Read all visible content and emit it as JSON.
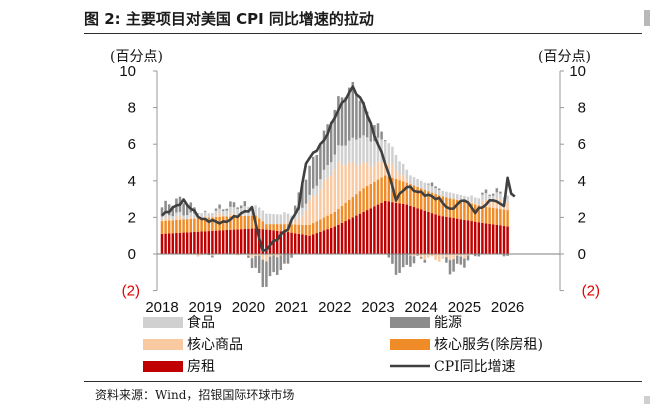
{
  "title": "图 2: 主要项目对美国 CPI 同比增速的拉动",
  "source": "资料来源：Wind，招银国际环球市场",
  "chart_data": {
    "type": "bar",
    "title": "图 2: 主要项目对美国 CPI 同比增速的拉动",
    "left_unit": "(百分点)",
    "right_unit": "(百分点)",
    "ylim": [
      -2,
      10
    ],
    "y_ticks": [
      10,
      8,
      6,
      4,
      2,
      0,
      -2
    ],
    "y_tick_labels": [
      "10",
      "8",
      "6",
      "4",
      "2",
      "0",
      "(2)"
    ],
    "x_tick_labels": [
      "2018",
      "2019",
      "2020",
      "2021",
      "2022",
      "2023",
      "2024",
      "2025",
      "2026"
    ],
    "stacked": true,
    "frequency": "monthly",
    "x_start": "2018-01",
    "x_end": "2026-01",
    "legend": [
      {
        "label": "食品",
        "color": "#d0d0d0",
        "kind": "bar"
      },
      {
        "label": "能源",
        "color": "#8c8c8c",
        "kind": "bar"
      },
      {
        "label": "核心商品",
        "color": "#f9c9a2",
        "kind": "bar"
      },
      {
        "label": "核心服务(除房租)",
        "color": "#f08c28",
        "kind": "bar"
      },
      {
        "label": "房租",
        "color": "#c00000",
        "kind": "bar"
      },
      {
        "label": "CPI同比增速",
        "color": "#404040",
        "kind": "line"
      }
    ],
    "anchors": {
      "rent": [
        [
          "2018-01",
          1.1
        ],
        [
          "2019-06",
          1.3
        ],
        [
          "2020-03",
          1.4
        ],
        [
          "2020-12",
          1.2
        ],
        [
          "2021-06",
          1.0
        ],
        [
          "2022-01",
          1.5
        ],
        [
          "2022-09",
          2.3
        ],
        [
          "2023-03",
          2.9
        ],
        [
          "2023-09",
          2.7
        ],
        [
          "2024-06",
          2.1
        ],
        [
          "2025-06",
          1.7
        ],
        [
          "2026-01",
          1.5
        ]
      ],
      "coreg": [
        [
          "2018-01",
          0.05
        ],
        [
          "2019-06",
          0.05
        ],
        [
          "2020-03",
          -0.05
        ],
        [
          "2020-06",
          -0.3
        ],
        [
          "2020-12",
          0.0
        ],
        [
          "2021-03",
          0.3
        ],
        [
          "2021-06",
          1.3
        ],
        [
          "2022-02",
          2.4
        ],
        [
          "2022-06",
          1.9
        ],
        [
          "2022-12",
          0.9
        ],
        [
          "2023-06",
          0.5
        ],
        [
          "2023-12",
          -0.1
        ],
        [
          "2024-06",
          -0.4
        ],
        [
          "2025-06",
          0.2
        ],
        [
          "2026-01",
          0.5
        ]
      ],
      "coresvc": [
        [
          "2018-01",
          0.7
        ],
        [
          "2019-06",
          0.75
        ],
        [
          "2020-03",
          0.7
        ],
        [
          "2020-06",
          0.3
        ],
        [
          "2021-03",
          0.5
        ],
        [
          "2022-01",
          0.8
        ],
        [
          "2022-09",
          1.3
        ],
        [
          "2023-03",
          1.4
        ],
        [
          "2023-09",
          1.2
        ],
        [
          "2024-06",
          1.1
        ],
        [
          "2025-06",
          0.9
        ],
        [
          "2026-01",
          0.9
        ]
      ],
      "food": [
        [
          "2018-01",
          0.2
        ],
        [
          "2019-06",
          0.25
        ],
        [
          "2020-04",
          0.6
        ],
        [
          "2020-12",
          0.5
        ],
        [
          "2021-06",
          0.35
        ],
        [
          "2022-01",
          0.8
        ],
        [
          "2022-08",
          1.5
        ],
        [
          "2023-03",
          1.2
        ],
        [
          "2023-09",
          0.5
        ],
        [
          "2024-06",
          0.3
        ],
        [
          "2025-06",
          0.35
        ],
        [
          "2026-01",
          0.35
        ]
      ],
      "energy": [
        [
          "2018-01",
          0.5
        ],
        [
          "2018-07",
          0.7
        ],
        [
          "2019-01",
          0.0
        ],
        [
          "2019-12",
          0.2
        ],
        [
          "2020-03",
          -0.6
        ],
        [
          "2020-05",
          -1.4
        ],
        [
          "2020-12",
          -0.6
        ],
        [
          "2021-04",
          1.4
        ],
        [
          "2021-10",
          2.0
        ],
        [
          "2022-06",
          3.0
        ],
        [
          "2022-10",
          1.4
        ],
        [
          "2023-03",
          0.1
        ],
        [
          "2023-06",
          -1.1
        ],
        [
          "2023-12",
          -0.1
        ],
        [
          "2024-06",
          0.1
        ],
        [
          "2024-09",
          -0.7
        ],
        [
          "2025-03",
          -0.1
        ],
        [
          "2025-09",
          0.1
        ],
        [
          "2026-01",
          -0.05
        ]
      ],
      "cpi": [
        [
          "2018-01",
          2.1
        ],
        [
          "2018-07",
          2.9
        ],
        [
          "2018-12",
          1.9
        ],
        [
          "2019-06",
          1.7
        ],
        [
          "2019-12",
          2.3
        ],
        [
          "2020-02",
          2.5
        ],
        [
          "2020-05",
          0.1
        ],
        [
          "2020-12",
          1.4
        ],
        [
          "2021-03",
          2.6
        ],
        [
          "2021-05",
          5.0
        ],
        [
          "2021-10",
          6.2
        ],
        [
          "2022-02",
          7.9
        ],
        [
          "2022-06",
          9.1
        ],
        [
          "2022-09",
          8.2
        ],
        [
          "2022-12",
          6.5
        ],
        [
          "2023-03",
          5.0
        ],
        [
          "2023-06",
          3.0
        ],
        [
          "2023-09",
          3.7
        ],
        [
          "2023-12",
          3.4
        ],
        [
          "2024-06",
          3.0
        ],
        [
          "2024-09",
          2.4
        ],
        [
          "2025-01",
          3.0
        ],
        [
          "2025-04",
          2.3
        ],
        [
          "2025-09",
          3.0
        ],
        [
          "2025-11",
          2.7
        ],
        [
          "2025-12",
          2.7
        ],
        [
          "2026-01",
          4.1
        ],
        [
          "2026-02",
          3.3
        ],
        [
          "2026-03",
          3.2
        ]
      ]
    },
    "grid": false,
    "legend_position": "bottom"
  }
}
